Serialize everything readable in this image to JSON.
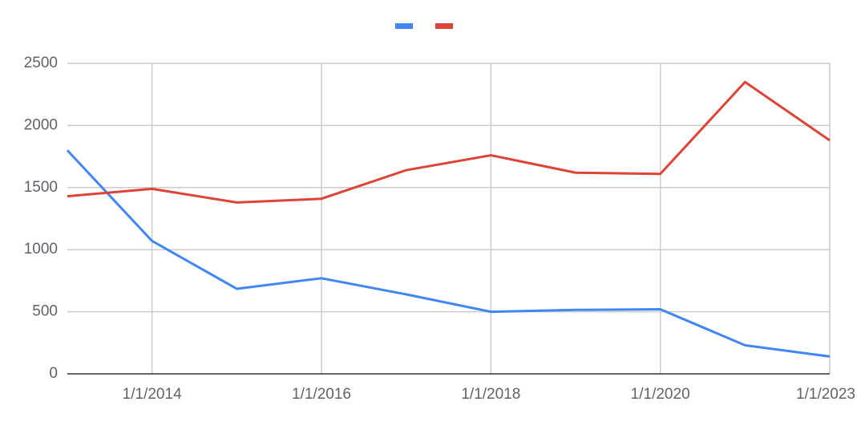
{
  "chart_data": {
    "type": "line",
    "categories": [
      null,
      "1/1/2014",
      null,
      "1/1/2016",
      null,
      "1/1/2018",
      null,
      "1/1/2020",
      null,
      "1/1/2023"
    ],
    "series": [
      {
        "color": "#4285f4",
        "values": [
          1800,
          1070,
          685,
          770,
          640,
          500,
          515,
          520,
          230,
          140
        ]
      },
      {
        "color": "#db4437",
        "values": [
          1430,
          1490,
          1380,
          1410,
          1640,
          1760,
          1620,
          1610,
          2350,
          1880
        ]
      }
    ],
    "ylim": [
      0,
      2500
    ],
    "yticks": [
      0,
      500,
      1000,
      1500,
      2000,
      2500
    ],
    "grid": true
  }
}
